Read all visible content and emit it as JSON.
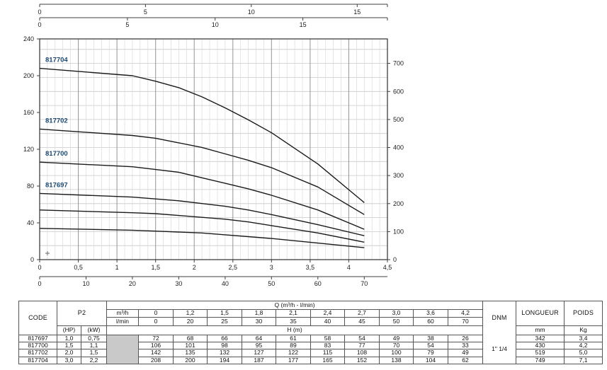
{
  "colors": {
    "curve": "#1a1a1a",
    "curve_label": "#1d4a73",
    "grid_minor": "#dadada",
    "grid_major": "#949494",
    "grid_horizontal": "#c8c8c8",
    "plot_border": "#2e2e2e",
    "axis": "#3f3f3f",
    "table_border": "#555555",
    "gray_cell": "#c9c9c9"
  },
  "chart_data": {
    "type": "line",
    "title": "",
    "xlabel": "",
    "ylabel": "",
    "x_m3h": [
      0,
      1.2,
      1.5,
      1.8,
      2.1,
      2.4,
      2.7,
      3.0,
      3.6,
      4.2
    ],
    "series": [
      {
        "name": "817704",
        "values": [
          208,
          200,
          194,
          187,
          177,
          165,
          152,
          138,
          104,
          62
        ]
      },
      {
        "name": "817702",
        "values": [
          142,
          135,
          132,
          127,
          122,
          115,
          108,
          100,
          79,
          49
        ]
      },
      {
        "name": "817700",
        "values": [
          106,
          101,
          98,
          95,
          89,
          83,
          77,
          70,
          54,
          33
        ]
      },
      {
        "name": "817697",
        "values": [
          72,
          68,
          66,
          64,
          61,
          58,
          54,
          49,
          38,
          26
        ]
      },
      {
        "name": "",
        "values": [
          54,
          51,
          50,
          48,
          46,
          44,
          41,
          37,
          29,
          19
        ]
      },
      {
        "name": "",
        "values": [
          34,
          32,
          31,
          30,
          29,
          27,
          25,
          23,
          18,
          13
        ]
      }
    ],
    "axes": {
      "left_m": {
        "ticks": [
          0,
          40,
          80,
          120,
          160,
          200,
          240
        ],
        "max": 240
      },
      "right_ft": {
        "ticks": [
          0,
          100,
          200,
          300,
          400,
          500,
          600,
          700
        ],
        "max": 787.4
      },
      "bottom_m3h": {
        "ticks": [
          0,
          0.5,
          1,
          1.5,
          2,
          2.5,
          3,
          3.5,
          4,
          4.5
        ],
        "max": 4.5
      },
      "bottom_lmin": {
        "ticks": [
          0,
          10,
          20,
          30,
          40,
          50,
          60,
          70
        ],
        "max": 75
      },
      "top_upper": {
        "ticks": [
          0,
          5,
          10,
          15
        ],
        "max": 16.43
      },
      "top_lower": {
        "ticks": [
          0,
          5,
          10,
          15
        ],
        "max": 19.82
      }
    },
    "grid": {
      "h_step_ft": 50,
      "v_minor_step": 0.1,
      "v_major_step": 0.5,
      "grid_on": true
    },
    "legend_position": "on-curve-start",
    "marker_plus": true
  },
  "table": {
    "headers": {
      "code": "CODE",
      "p2": "P2",
      "hp": "(HP)",
      "kw": "(kW)",
      "q_header": "Q (m³/h - l/min)",
      "m3h": "m³/h",
      "lmin": "l/min",
      "h_m": "H (m)",
      "dnm": "DNM",
      "longueur": "LONGUEUR",
      "poids": "POIDS",
      "mm": "mm",
      "kg": "Kg"
    },
    "q_m3h": [
      "0",
      "1,2",
      "1,5",
      "1,8",
      "2,1",
      "2,4",
      "2,7",
      "3,0",
      "3,6",
      "4,2"
    ],
    "q_lmin": [
      "0",
      "20",
      "25",
      "30",
      "35",
      "40",
      "45",
      "50",
      "60",
      "70"
    ],
    "dnm_value": "1\" 1/4",
    "rows": [
      {
        "code": "817697",
        "hp": "1,0",
        "kw": "0,75",
        "h": [
          "72",
          "68",
          "66",
          "64",
          "61",
          "58",
          "54",
          "49",
          "38",
          "26"
        ],
        "longueur": "342",
        "poids": "3,4"
      },
      {
        "code": "817700",
        "hp": "1,5",
        "kw": "1,1",
        "h": [
          "106",
          "101",
          "98",
          "95",
          "89",
          "83",
          "77",
          "70",
          "54",
          "33"
        ],
        "longueur": "430",
        "poids": "4,2"
      },
      {
        "code": "817702",
        "hp": "2,0",
        "kw": "1,5",
        "h": [
          "142",
          "135",
          "132",
          "127",
          "122",
          "115",
          "108",
          "100",
          "79",
          "49"
        ],
        "longueur": "519",
        "poids": "5,0"
      },
      {
        "code": "817704",
        "hp": "3,0",
        "kw": "2,2",
        "h": [
          "208",
          "200",
          "194",
          "187",
          "177",
          "165",
          "152",
          "138",
          "104",
          "62"
        ],
        "longueur": "749",
        "poids": "7,1"
      }
    ]
  }
}
